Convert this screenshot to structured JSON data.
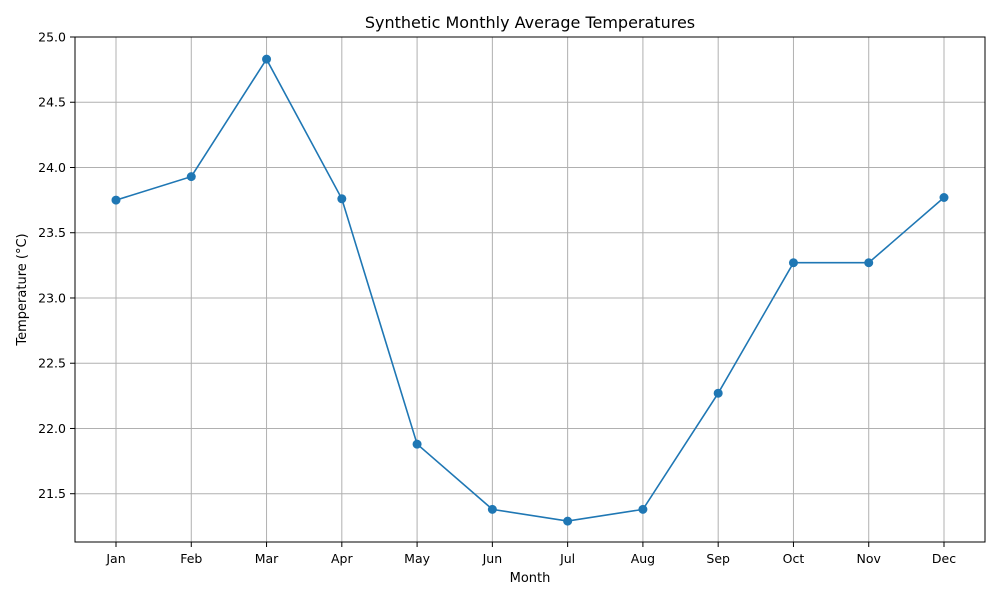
{
  "chart_data": {
    "type": "line",
    "title": "Synthetic Monthly Average Temperatures",
    "xlabel": "Month",
    "ylabel": "Temperature (°C)",
    "categories": [
      "Jan",
      "Feb",
      "Mar",
      "Apr",
      "May",
      "Jun",
      "Jul",
      "Aug",
      "Sep",
      "Oct",
      "Nov",
      "Dec"
    ],
    "series": [
      {
        "values": [
          23.75,
          23.93,
          24.83,
          23.76,
          21.88,
          21.38,
          21.29,
          21.38,
          22.27,
          23.27,
          23.27,
          23.77
        ],
        "color": "#1f77b4",
        "marker": "circle"
      }
    ],
    "ylim": [
      21.13,
      25.0
    ],
    "yticks": [
      "21.5",
      "22.0",
      "22.5",
      "23.0",
      "23.5",
      "24.0",
      "24.5",
      "25.0"
    ],
    "grid": true,
    "legend": "none"
  }
}
